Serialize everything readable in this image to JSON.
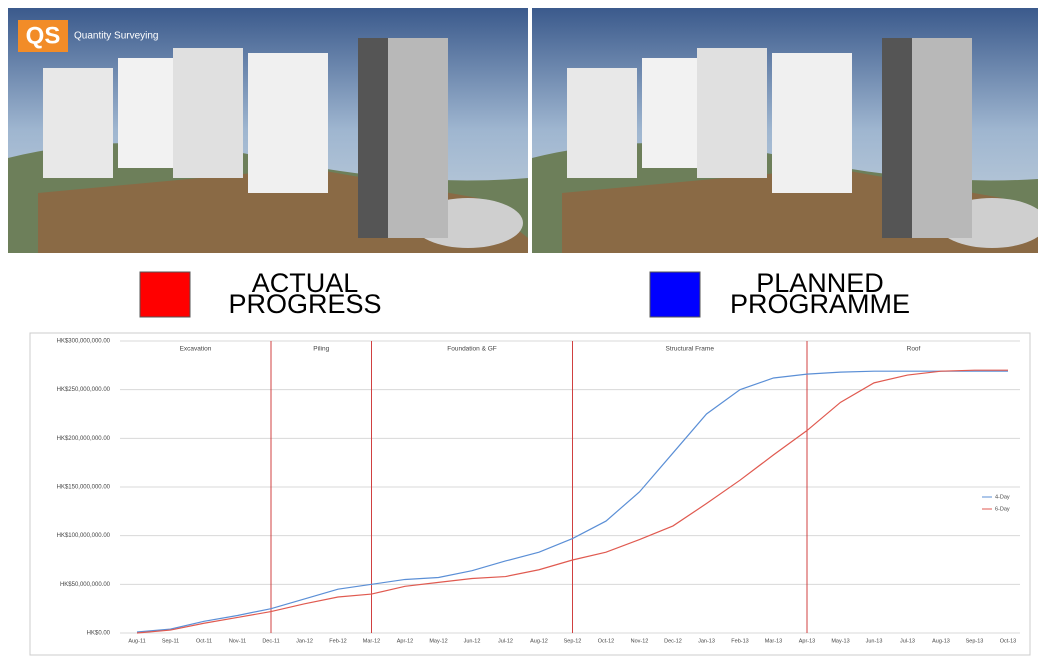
{
  "logo": {
    "mark": "QS",
    "text": "Quantity Surveying"
  },
  "legend_boxes": [
    {
      "label": [
        "ACTUAL",
        "PROGRESS"
      ],
      "color": "#ff0000"
    },
    {
      "label": [
        "PLANNED",
        "PROGRAMME"
      ],
      "color": "#0000ff"
    }
  ],
  "chart_data": {
    "type": "line",
    "categories": [
      "Aug-11",
      "Sep-11",
      "Oct-11",
      "Nov-11",
      "Dec-11",
      "Jan-12",
      "Feb-12",
      "Mar-12",
      "Apr-12",
      "May-12",
      "Jun-12",
      "Jul-12",
      "Aug-12",
      "Sep-12",
      "Oct-12",
      "Nov-12",
      "Dec-12",
      "Jan-13",
      "Feb-13",
      "Mar-13",
      "Apr-13",
      "May-13",
      "Jun-13",
      "Jul-13",
      "Aug-13",
      "Sep-13",
      "Oct-13"
    ],
    "series": [
      {
        "name": "4-Day",
        "color": "#5b8fd6",
        "values": [
          1000000,
          4000000,
          12000000,
          18000000,
          25000000,
          35000000,
          45000000,
          50000000,
          55000000,
          57000000,
          64000000,
          74000000,
          83000000,
          97000000,
          115000000,
          145000000,
          185000000,
          225000000,
          250000000,
          262000000,
          266000000,
          268000000,
          269000000,
          269000000,
          269000000,
          269000000,
          269000000
        ]
      },
      {
        "name": "6-Day",
        "color": "#e05a50",
        "values": [
          0,
          3000000,
          10000000,
          16000000,
          22000000,
          30000000,
          37000000,
          40000000,
          48000000,
          52000000,
          56000000,
          58000000,
          65000000,
          75000000,
          83000000,
          96000000,
          110000000,
          133000000,
          157000000,
          183000000,
          208000000,
          237000000,
          257000000,
          265000000,
          269000000,
          270000000,
          270000000
        ]
      }
    ],
    "ylim": [
      0,
      300000000
    ],
    "yticks": [
      {
        "value": 0,
        "label": "HK$0.00"
      },
      {
        "value": 50000000,
        "label": "HK$50,000,000.00"
      },
      {
        "value": 100000000,
        "label": "HK$100,000,000.00"
      },
      {
        "value": 150000000,
        "label": "HK$150,000,000.00"
      },
      {
        "value": 200000000,
        "label": "HK$200,000,000.00"
      },
      {
        "value": 250000000,
        "label": "HK$250,000,000.00"
      },
      {
        "value": 300000000,
        "label": "HK$300,000,000.00"
      }
    ],
    "grid": true,
    "phases": [
      {
        "label": "Excavation",
        "end": "Dec-11"
      },
      {
        "label": "Piling",
        "end": "Mar-12"
      },
      {
        "label": "Foundation & GF",
        "end": "Sep-12"
      },
      {
        "label": "Structural Frame",
        "end": "Apr-13"
      },
      {
        "label": "Roof",
        "end": "Oct-13"
      }
    ],
    "divider_color": "#d04040",
    "legend": "right"
  }
}
